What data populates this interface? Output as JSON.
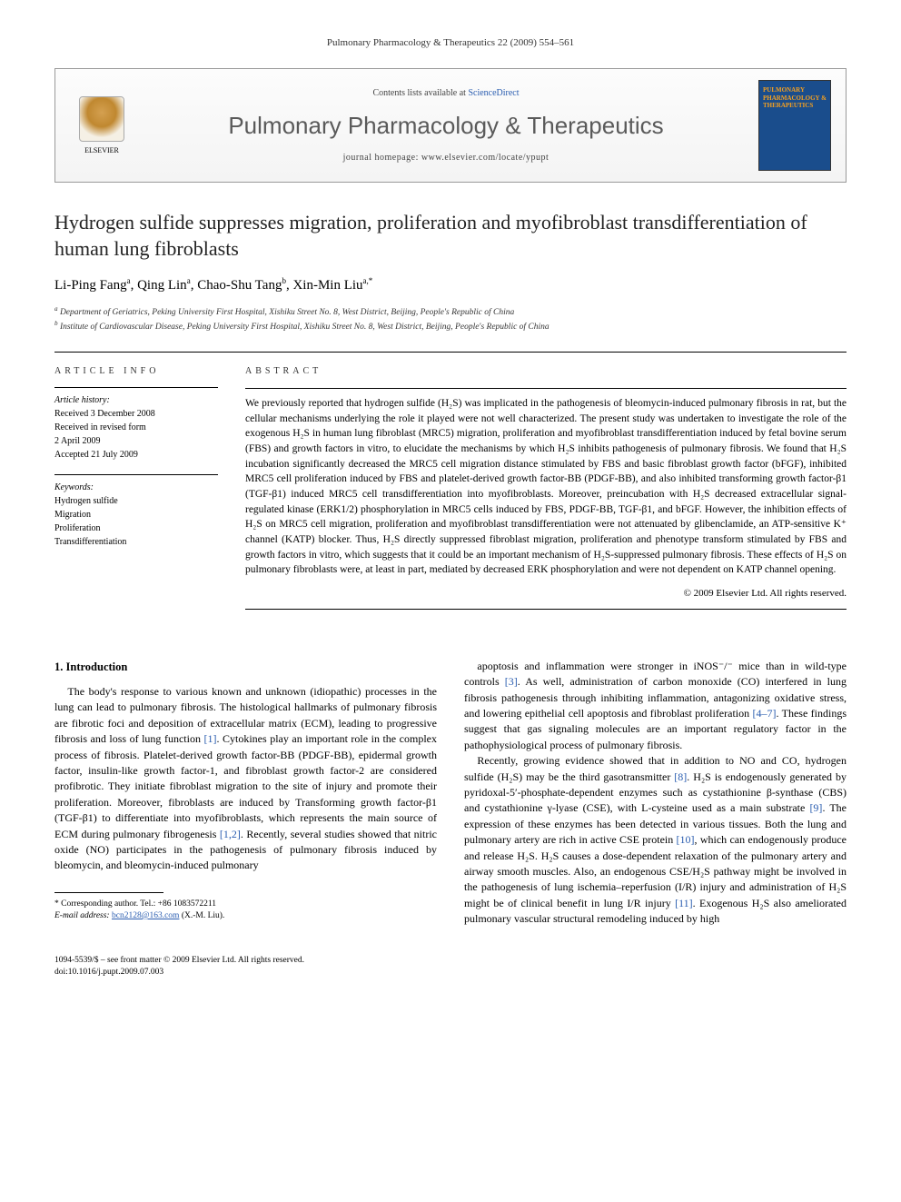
{
  "running_header": "Pulmonary Pharmacology & Therapeutics 22 (2009) 554–561",
  "masthead": {
    "contents_prefix": "Contents lists available at ",
    "contents_link": "ScienceDirect",
    "journal": "Pulmonary Pharmacology & Therapeutics",
    "homepage": "journal homepage: www.elsevier.com/locate/ypupt",
    "publisher": "ELSEVIER",
    "cover_title": "PULMONARY PHARMACOLOGY & THERAPEUTICS"
  },
  "title": "Hydrogen sulfide suppresses migration, proliferation and myofibroblast transdifferentiation of human lung fibroblasts",
  "authors": [
    {
      "name": "Li-Ping Fang",
      "aff": "a"
    },
    {
      "name": "Qing Lin",
      "aff": "a"
    },
    {
      "name": "Chao-Shu Tang",
      "aff": "b"
    },
    {
      "name": "Xin-Min Liu",
      "aff": "a,*"
    }
  ],
  "affiliations": [
    {
      "sup": "a",
      "text": "Department of Geriatrics, Peking University First Hospital, Xishiku Street No. 8, West District, Beijing, People's Republic of China"
    },
    {
      "sup": "b",
      "text": "Institute of Cardiovascular Disease, Peking University First Hospital, Xishiku Street No. 8, West District, Beijing, People's Republic of China"
    }
  ],
  "article_info": {
    "heading": "ARTICLE INFO",
    "history_label": "Article history:",
    "history": [
      "Received 3 December 2008",
      "Received in revised form",
      "2 April 2009",
      "Accepted 21 July 2009"
    ],
    "keywords_label": "Keywords:",
    "keywords": [
      "Hydrogen sulfide",
      "Migration",
      "Proliferation",
      "Transdifferentiation"
    ]
  },
  "abstract": {
    "heading": "ABSTRACT",
    "body": "We previously reported that hydrogen sulfide (H₂S) was implicated in the pathogenesis of bleomycin-induced pulmonary fibrosis in rat, but the cellular mechanisms underlying the role it played were not well characterized. The present study was undertaken to investigate the role of the exogenous H₂S in human lung fibroblast (MRC5) migration, proliferation and myofibroblast transdifferentiation induced by fetal bovine serum (FBS) and growth factors in vitro, to elucidate the mechanisms by which H₂S inhibits pathogenesis of pulmonary fibrosis. We found that H₂S incubation significantly decreased the MRC5 cell migration distance stimulated by FBS and basic fibroblast growth factor (bFGF), inhibited MRC5 cell proliferation induced by FBS and platelet-derived growth factor-BB (PDGF-BB), and also inhibited transforming growth factor-β1 (TGF-β1) induced MRC5 cell transdifferentiation into myofibroblasts. Moreover, preincubation with H₂S decreased extracellular signal-regulated kinase (ERK1/2) phosphorylation in MRC5 cells induced by FBS, PDGF-BB, TGF-β1, and bFGF. However, the inhibition effects of H₂S on MRC5 cell migration, proliferation and myofibroblast transdifferentiation were not attenuated by glibenclamide, an ATP-sensitive K⁺ channel (KATP) blocker. Thus, H₂S directly suppressed fibroblast migration, proliferation and phenotype transform stimulated by FBS and growth factors in vitro, which suggests that it could be an important mechanism of H₂S-suppressed pulmonary fibrosis. These effects of H₂S on pulmonary fibroblasts were, at least in part, mediated by decreased ERK phosphorylation and were not dependent on KATP channel opening.",
    "copyright": "© 2009 Elsevier Ltd. All rights reserved."
  },
  "intro": {
    "heading": "1. Introduction",
    "p1": "The body's response to various known and unknown (idiopathic) processes in the lung can lead to pulmonary fibrosis. The histological hallmarks of pulmonary fibrosis are fibrotic foci and deposition of extracellular matrix (ECM), leading to progressive fibrosis and loss of lung function [1]. Cytokines play an important role in the complex process of fibrosis. Platelet-derived growth factor-BB (PDGF-BB), epidermal growth factor, insulin-like growth factor-1, and fibroblast growth factor-2 are considered profibrotic. They initiate fibroblast migration to the site of injury and promote their proliferation. Moreover, fibroblasts are induced by Transforming growth factor-β1 (TGF-β1) to differentiate into myofibroblasts, which represents the main source of ECM during pulmonary fibrogenesis [1,2]. Recently, several studies showed that nitric oxide (NO) participates in the pathogenesis of pulmonary fibrosis induced by bleomycin, and bleomycin-induced pulmonary",
    "p2": "apoptosis and inflammation were stronger in iNOS⁻/⁻ mice than in wild-type controls [3]. As well, administration of carbon monoxide (CO) interfered in lung fibrosis pathogenesis through inhibiting inflammation, antagonizing oxidative stress, and lowering epithelial cell apoptosis and fibroblast proliferation [4–7]. These findings suggest that gas signaling molecules are an important regulatory factor in the pathophysiological process of pulmonary fibrosis.",
    "p3": "Recently, growing evidence showed that in addition to NO and CO, hydrogen sulfide (H₂S) may be the third gasotransmitter [8]. H₂S is endogenously generated by pyridoxal-5′-phosphate-dependent enzymes such as cystathionine β-synthase (CBS) and cystathionine γ-lyase (CSE), with L-cysteine used as a main substrate [9]. The expression of these enzymes has been detected in various tissues. Both the lung and pulmonary artery are rich in active CSE protein [10], which can endogenously produce and release H₂S. H₂S causes a dose-dependent relaxation of the pulmonary artery and airway smooth muscles. Also, an endogenous CSE/H₂S pathway might be involved in the pathogenesis of lung ischemia–reperfusion (I/R) injury and administration of H₂S might be of clinical benefit in lung I/R injury [11]. Exogenous H₂S also ameliorated pulmonary vascular structural remodeling induced by high"
  },
  "footnotes": {
    "corr": "* Corresponding author. Tel.: +86 1083572211",
    "email_label": "E-mail address:",
    "email": "bcn2128@163.com",
    "email_suffix": " (X.-M. Liu)."
  },
  "footer": {
    "issn": "1094-5539/$ – see front matter © 2009 Elsevier Ltd. All rights reserved.",
    "doi": "doi:10.1016/j.pupt.2009.07.003"
  },
  "colors": {
    "link": "#2a5db0",
    "masthead_bg_top": "#fcfcfc",
    "masthead_bg_bottom": "#f4f4f4",
    "cover_bg": "#1a4d8c",
    "cover_accent": "#f5a020"
  }
}
